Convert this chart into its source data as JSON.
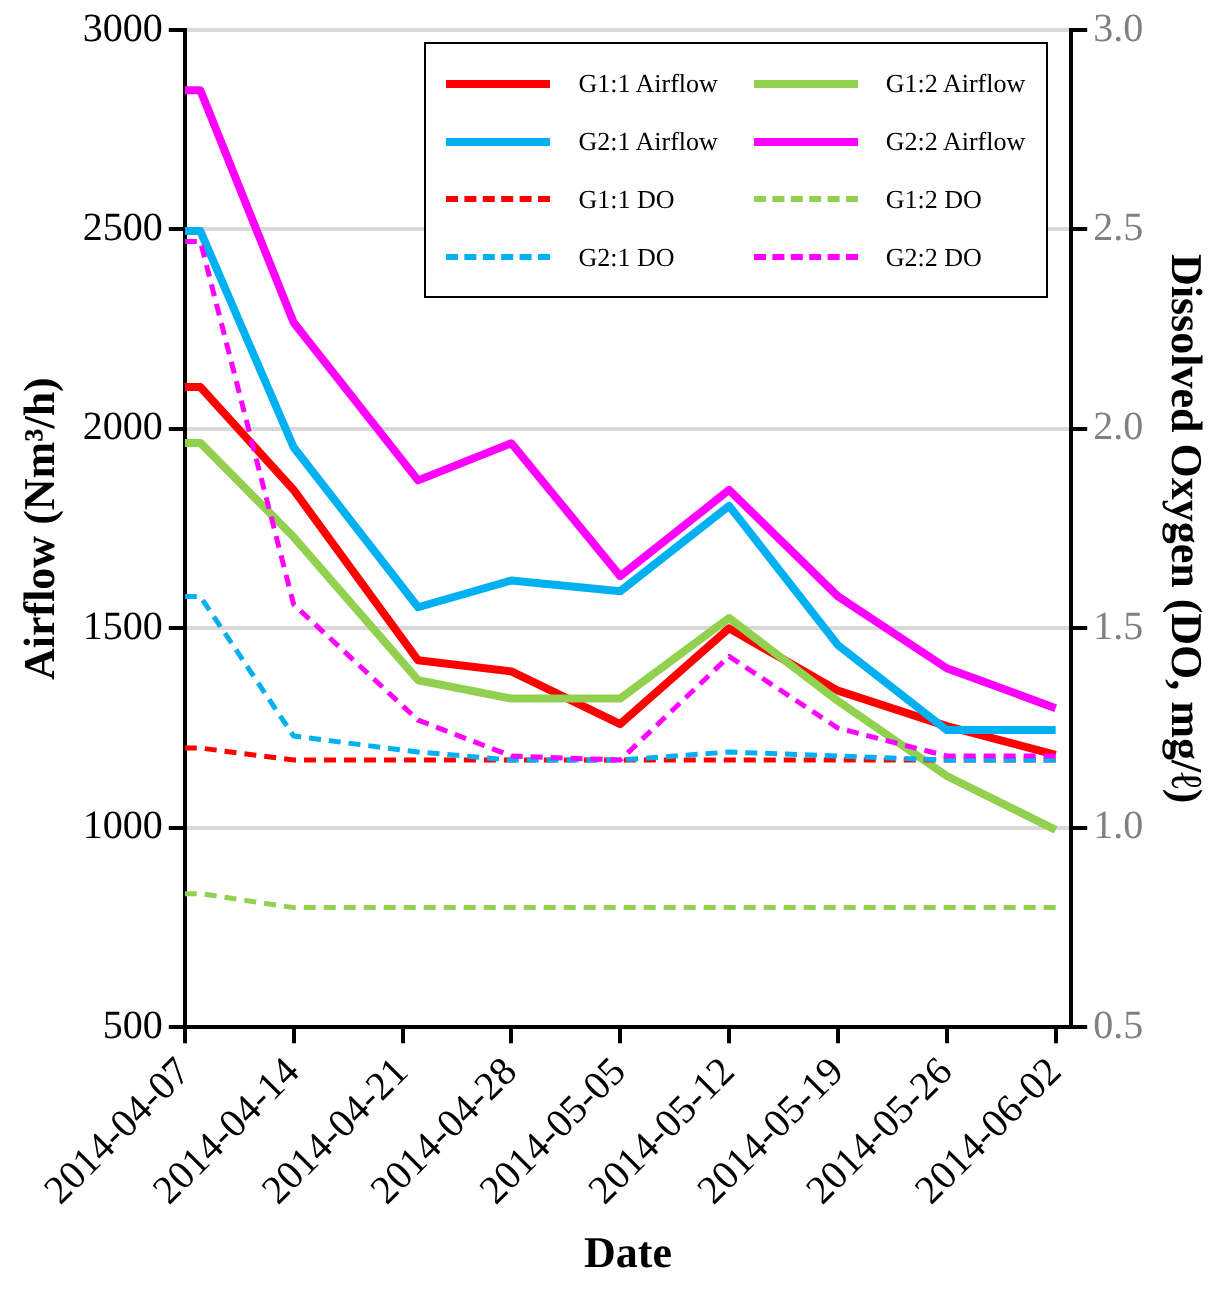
{
  "chart_data": {
    "type": "line",
    "xlabel": "Date",
    "ylabel": "Airflow (Nm³/h)",
    "y2label": "Dissolved Oxygen (DO, mg/ℓ)",
    "x": [
      "2014-04-07",
      "2014-04-08",
      "2014-04-14",
      "2014-04-22",
      "2014-04-28",
      "2014-05-05",
      "2014-05-12",
      "2014-05-19",
      "2014-05-26",
      "2014-06-02"
    ],
    "xlim": [
      "2014-04-07",
      "2014-06-03"
    ],
    "xticks": [
      "2014-04-07",
      "2014-04-14",
      "2014-04-21",
      "2014-04-28",
      "2014-05-05",
      "2014-05-12",
      "2014-05-19",
      "2014-05-26",
      "2014-06-02"
    ],
    "ylim": [
      500,
      3000
    ],
    "yticks": [
      500,
      1000,
      1500,
      2000,
      2500,
      3000
    ],
    "y2lim": [
      0.5,
      3.0
    ],
    "y2ticks": [
      {
        "value": 0.5,
        "label": "0.5"
      },
      {
        "value": 1,
        "label": "1.0"
      },
      {
        "value": 1.5,
        "label": "1.5"
      },
      {
        "value": 2,
        "label": "2.0"
      },
      {
        "value": 2.5,
        "label": "2.5"
      },
      {
        "value": 3,
        "label": "3.0"
      }
    ],
    "grid": "y",
    "legend": "top right",
    "marker": "none",
    "series": [
      {
        "name": "G1:1 Airflow",
        "color": "#ff0000",
        "line_style": "solid",
        "values": [
          2105,
          2105,
          1847,
          1420,
          1392,
          1260,
          1500,
          1344,
          1255,
          1183
        ]
      },
      {
        "name": "G1:2 Airflow",
        "color": "#92d050",
        "line_style": "solid",
        "values": [
          1965,
          1965,
          1729,
          1370,
          1324,
          1324,
          1526,
          1318,
          1130,
          995
        ]
      },
      {
        "name": "G2:1 Airflow",
        "color": "#00b0f0",
        "line_style": "solid",
        "values": [
          2496,
          2496,
          1954,
          1553,
          1620,
          1593,
          1807,
          1458,
          1245,
          1245
        ]
      },
      {
        "name": "G2:2 Airflow",
        "color": "#ff00ff",
        "line_style": "solid",
        "values": [
          2849,
          2849,
          2267,
          1871,
          1964,
          1631,
          1847,
          1580,
          1400,
          1300
        ]
      },
      {
        "name": "G1:1 DO",
        "color": "#ff0000",
        "line_style": "dashed",
        "axis": "y2",
        "values": [
          1.2,
          1.2,
          1.17,
          1.17,
          1.17,
          1.17,
          1.17,
          1.17,
          1.17,
          1.17
        ]
      },
      {
        "name": "G1:2 DO",
        "color": "#92d050",
        "line_style": "dashed",
        "axis": "y2",
        "values": [
          0.835,
          0.835,
          0.8,
          0.8,
          0.8,
          0.8,
          0.8,
          0.8,
          0.8,
          0.8
        ]
      },
      {
        "name": "G2:1 DO",
        "color": "#00b0f0",
        "line_style": "dashed",
        "axis": "y2",
        "values": [
          1.58,
          1.58,
          1.23,
          1.19,
          1.17,
          1.17,
          1.19,
          1.18,
          1.17,
          1.17
        ]
      },
      {
        "name": "G2:2 DO",
        "color": "#ff00ff",
        "line_style": "dashed",
        "axis": "y2",
        "values": [
          2.47,
          2.47,
          1.56,
          1.27,
          1.18,
          1.17,
          1.43,
          1.25,
          1.18,
          1.18
        ]
      }
    ]
  }
}
